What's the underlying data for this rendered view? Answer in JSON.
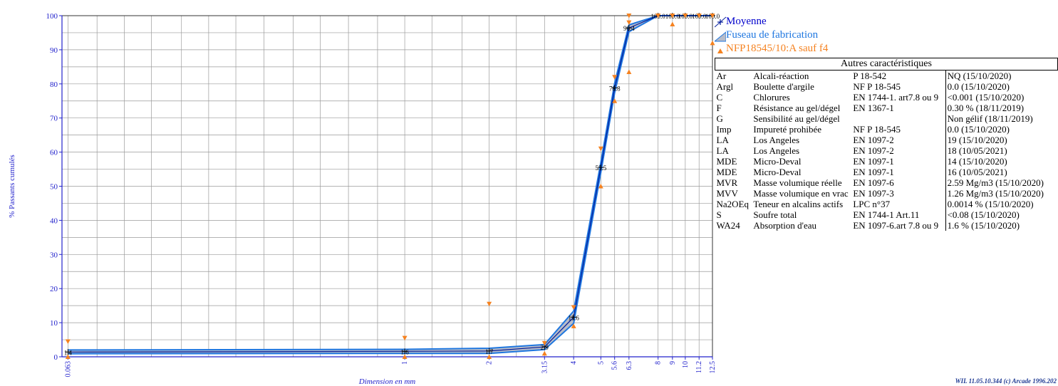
{
  "chart_data": {
    "type": "line",
    "xlabel": "Dimension en mm",
    "ylabel": "% Passants cumulés",
    "ylim": [
      0,
      100
    ],
    "x_scale": "log",
    "x_ticks": [
      "0.063",
      "1",
      "2",
      "3.15",
      "4",
      "5",
      "5.6",
      "6.3",
      "8",
      "9",
      "10",
      "11.2",
      "12.5"
    ],
    "y_ticks": [
      "0",
      "10",
      "20",
      "30",
      "40",
      "50",
      "60",
      "70",
      "80",
      "90",
      "100"
    ],
    "grid": true,
    "series": [
      {
        "name": "Moyenne",
        "x": [
          0.063,
          1,
          2,
          3.15,
          4,
          5,
          5.6,
          6.3,
          8,
          9,
          10,
          11.2,
          12.5
        ],
        "y": [
          1.4,
          1.6,
          1.7,
          2.9,
          11.6,
          55.5,
          78.8,
          96.4,
          100.0,
          100.0,
          100.0,
          100.0,
          100.0
        ],
        "labels": [
          "1.4",
          "1.6",
          "1.7",
          "2.9",
          "11.6",
          "55.5",
          "78.8",
          "96.4",
          "100.0",
          "100.0",
          "100.0",
          "100.0",
          "100.0"
        ]
      },
      {
        "name": "Fuseau de fabrication",
        "x": [
          0.063,
          1,
          2,
          3.15,
          4,
          5,
          5.6,
          6.3,
          8,
          9,
          10,
          11.2,
          12.5
        ],
        "upper": [
          2.0,
          2.2,
          2.5,
          3.6,
          13.4,
          57.0,
          80.2,
          97.3,
          100,
          100,
          100,
          100,
          100
        ],
        "lower": [
          0.9,
          1.0,
          1.0,
          2.1,
          9.8,
          54.0,
          77.4,
          95.3,
          100,
          100,
          100,
          100,
          100
        ]
      },
      {
        "name": "NFP18545/10:A sauf f4",
        "upper_marks": [
          [
            0.063,
            4.5
          ],
          [
            1,
            5.5
          ],
          [
            2,
            15.5
          ],
          [
            3.15,
            4
          ],
          [
            4,
            14.5
          ],
          [
            5,
            61
          ],
          [
            5.6,
            82
          ],
          [
            6.3,
            98
          ],
          [
            6.3,
            100
          ],
          [
            8,
            100
          ],
          [
            9,
            100
          ],
          [
            10,
            100
          ],
          [
            11.2,
            100
          ],
          [
            12.5,
            100
          ]
        ],
        "lower_marks": [
          [
            0.063,
            0
          ],
          [
            1,
            0
          ],
          [
            2,
            0
          ],
          [
            3.15,
            1
          ],
          [
            4,
            9
          ],
          [
            5,
            50
          ],
          [
            5.6,
            75
          ],
          [
            6.3,
            83.5
          ],
          [
            9,
            97.5
          ],
          [
            12.5,
            92
          ]
        ]
      }
    ],
    "colors": {
      "axis": "#2222cc",
      "moyenne": "#001a99",
      "fuseau_line": "#1f77e0",
      "fuseau_fill": "#b7bcc9",
      "spec": "#f58220",
      "grid": "#9a9a9a"
    }
  },
  "legend": {
    "moyenne": "Moyenne",
    "fuseau": "Fuseau de fabrication",
    "spec": "NFP18545/10:A sauf f4"
  },
  "table": {
    "title": "Autres caractéristiques",
    "rows": [
      [
        "Ar",
        "Alcali-réaction",
        "P 18-542",
        "NQ  (15/10/2020)"
      ],
      [
        "Argl",
        "Boulette d'argile",
        "NF P 18-545",
        "0.0  (15/10/2020)"
      ],
      [
        "C",
        "Chlorures",
        "EN 1744-1. art7.8 ou 9",
        "<0.001  (15/10/2020)"
      ],
      [
        "F",
        "Résistance au gel/dégel",
        "EN 1367-1",
        "0.30 %  (18/11/2019)"
      ],
      [
        "G",
        "Sensibilité au gel/dégel",
        "",
        "Non gélif  (18/11/2019)"
      ],
      [
        "Imp",
        "Impureté prohibée",
        "NF P 18-545",
        "0.0  (15/10/2020)"
      ],
      [
        "LA",
        "Los Angeles",
        "EN 1097-2",
        "19  (15/10/2020)"
      ],
      [
        "LA",
        "Los Angeles",
        "EN 1097-2",
        "18  (10/05/2021)"
      ],
      [
        "MDE",
        "Micro-Deval",
        "EN 1097-1",
        "14  (15/10/2020)"
      ],
      [
        "MDE",
        "Micro-Deval",
        "EN 1097-1",
        "16  (10/05/2021)"
      ],
      [
        "MVR",
        "Masse volumique réelle",
        "EN 1097-6",
        "2.59 Mg/m3  (15/10/2020)"
      ],
      [
        "MVV",
        "Masse volumique en vrac",
        "EN 1097-3",
        "1.26 Mg/m3  (15/10/2020)"
      ],
      [
        "Na2OEq",
        "Teneur en alcalins actifs",
        "LPC n°37",
        "0.0014 %  (15/10/2020)"
      ],
      [
        "S",
        "Soufre total",
        "EN 1744-1 Art.11",
        "<0.08  (15/10/2020)"
      ],
      [
        "WA24",
        "Absorption d'eau",
        "EN 1097-6.art 7.8 ou 9",
        "1.6 %  (15/10/2020)"
      ]
    ]
  },
  "footer": "WIL 11.05.10.344 (c) Arcade 1996.202"
}
